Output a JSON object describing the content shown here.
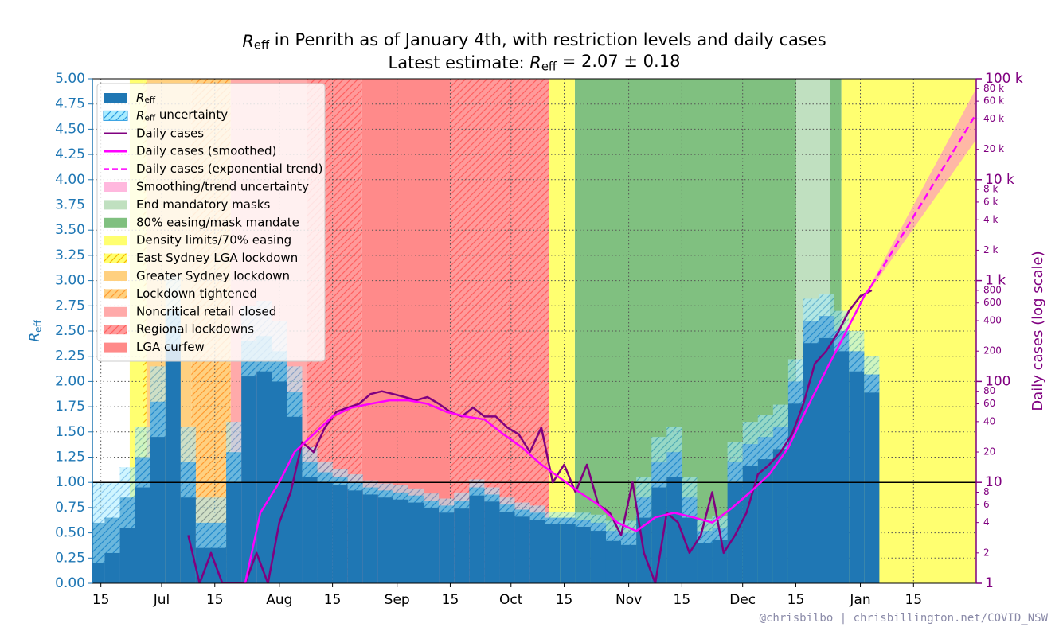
{
  "chart_data": {
    "type": "reff",
    "title": {
      "symbol": "R",
      "subscript": "eff",
      "text": " in Penrith as of January 4th, with restriction levels and daily cases"
    },
    "subtitle": {
      "prefix": "Latest estimate: ",
      "symbol": "R",
      "subscript": "eff",
      "text": " = 2.07 ± 0.18"
    },
    "ylabel": {
      "symbol": "R",
      "subscript": "eff"
    },
    "y2label": "Daily cases (log scale)",
    "credit": "@chrisbilbo | chrisbillington.net/COVID_NSW",
    "grid": true,
    "log_y2": true,
    "hline": 1,
    "xlim": [
      11.76,
      244.5
    ],
    "xticks": [
      {
        "value": 14,
        "label": "15"
      },
      {
        "value": 30,
        "label": "Jul"
      },
      {
        "value": 44,
        "label": "15"
      },
      {
        "value": 61,
        "label": "Aug"
      },
      {
        "value": 75,
        "label": "15"
      },
      {
        "value": 92,
        "label": "Sep"
      },
      {
        "value": 106,
        "label": "15"
      },
      {
        "value": 122,
        "label": "Oct"
      },
      {
        "value": 136,
        "label": "15"
      },
      {
        "value": 153,
        "label": "Nov"
      },
      {
        "value": 167,
        "label": "15"
      },
      {
        "value": 183,
        "label": "Dec"
      },
      {
        "value": 197,
        "label": "15"
      },
      {
        "value": 214,
        "label": "Jan"
      },
      {
        "value": 228,
        "label": "15"
      }
    ],
    "ylim": [
      0,
      5
    ],
    "yticks": [
      {
        "value": 0,
        "label": "0.00"
      },
      {
        "value": 0.25,
        "label": "0.25"
      },
      {
        "value": 0.5,
        "label": "0.50"
      },
      {
        "value": 0.75,
        "label": "0.75"
      },
      {
        "value": 1,
        "label": "1.00"
      },
      {
        "value": 1.25,
        "label": "1.25"
      },
      {
        "value": 1.5,
        "label": "1.50"
      },
      {
        "value": 1.75,
        "label": "1.75"
      },
      {
        "value": 2,
        "label": "2.00"
      },
      {
        "value": 2.25,
        "label": "2.25"
      },
      {
        "value": 2.5,
        "label": "2.50"
      },
      {
        "value": 2.75,
        "label": "2.75"
      },
      {
        "value": 3,
        "label": "3.00"
      },
      {
        "value": 3.25,
        "label": "3.25"
      },
      {
        "value": 3.5,
        "label": "3.50"
      },
      {
        "value": 3.75,
        "label": "3.75"
      },
      {
        "value": 4,
        "label": "4.00"
      },
      {
        "value": 4.25,
        "label": "4.25"
      },
      {
        "value": 4.5,
        "label": "4.50"
      },
      {
        "value": 4.75,
        "label": "4.75"
      },
      {
        "value": 5,
        "label": "5.00"
      }
    ],
    "y2lim": [
      1,
      100000
    ],
    "y2ticks": [
      1,
      10,
      100,
      {
        "value": 1000,
        "label": "1 k"
      },
      {
        "value": 10000,
        "label": "10 k"
      },
      {
        "value": 100000,
        "label": "100 k"
      }
    ],
    "y2minorticks": [
      2,
      4,
      6,
      8,
      20,
      40,
      60,
      80,
      200,
      400,
      600,
      800,
      {
        "value": 2000,
        "label": "2 k"
      },
      {
        "value": 4000,
        "label": "4 k"
      },
      {
        "value": 6000,
        "label": "6 k"
      },
      {
        "value": 8000,
        "label": "8 k"
      },
      {
        "value": 20000,
        "label": "20 k"
      },
      {
        "value": 40000,
        "label": "40 k"
      },
      {
        "value": 60000,
        "label": "60 k"
      },
      {
        "value": 80000,
        "label": "80 k"
      }
    ],
    "reff": {
      "name": {
        "symbol": "R",
        "subscript": "eff"
      },
      "color": "#1f77b4",
      "uncertainty_name": {
        "symbol": "R",
        "subscript": "eff",
        "text": " uncertainty"
      },
      "uncertainty_color": "#a8ecff",
      "uncertainty_hatch": "#2a9be0",
      "x": [
        13,
        17,
        21,
        25,
        29,
        33,
        37,
        41,
        45,
        49,
        53,
        57,
        61,
        65,
        69,
        73,
        77,
        81,
        85,
        89,
        93,
        97,
        101,
        105,
        109,
        113,
        117,
        121,
        125,
        129,
        133,
        137,
        141,
        145,
        149,
        153,
        157,
        161,
        165,
        169,
        173,
        177,
        181,
        185,
        189,
        193,
        197,
        201,
        205,
        209,
        213,
        217
      ],
      "values": [
        0.6,
        0.65,
        0.85,
        1.25,
        1.8,
        2.7,
        1.2,
        0.6,
        0.6,
        1.3,
        2.4,
        2.45,
        2.3,
        1.9,
        1.2,
        1.1,
        1.05,
        1.0,
        0.95,
        0.92,
        0.9,
        0.87,
        0.82,
        0.77,
        0.82,
        0.95,
        0.88,
        0.78,
        0.73,
        0.7,
        0.65,
        0.65,
        0.63,
        0.6,
        0.52,
        0.5,
        0.85,
        1.2,
        1.3,
        0.85,
        0.52,
        0.55,
        1.2,
        1.38,
        1.45,
        1.55,
        2.0,
        2.6,
        2.65,
        2.5,
        2.3,
        2.07
      ],
      "errors": [
        0.4,
        0.35,
        0.3,
        0.3,
        0.35,
        0.35,
        0.35,
        0.25,
        0.25,
        0.3,
        0.35,
        0.35,
        0.3,
        0.25,
        0.15,
        0.1,
        0.08,
        0.08,
        0.07,
        0.07,
        0.07,
        0.07,
        0.07,
        0.07,
        0.08,
        0.08,
        0.07,
        0.07,
        0.07,
        0.07,
        0.06,
        0.06,
        0.07,
        0.08,
        0.1,
        0.12,
        0.2,
        0.25,
        0.25,
        0.2,
        0.12,
        0.12,
        0.2,
        0.22,
        0.22,
        0.22,
        0.22,
        0.22,
        0.22,
        0.2,
        0.2,
        0.18
      ]
    },
    "cases": {
      "name": "Daily cases",
      "color": "#800080",
      "axis": "y2",
      "x": [
        37,
        40,
        43,
        46,
        49,
        52,
        55,
        58,
        61,
        64,
        67,
        70,
        73,
        76,
        79,
        82,
        85,
        88,
        91,
        94,
        97,
        100,
        103,
        106,
        109,
        112,
        115,
        118,
        121,
        124,
        127,
        130,
        133,
        136,
        139,
        142,
        145,
        148,
        151,
        154,
        157,
        160,
        163,
        166,
        169,
        172,
        175,
        178,
        181,
        184,
        187,
        190,
        193,
        196,
        199,
        202,
        205,
        208,
        211,
        214,
        217
      ],
      "values": [
        3,
        1,
        2,
        1,
        1,
        1,
        2,
        1,
        4,
        8,
        25,
        20,
        35,
        50,
        55,
        60,
        75,
        80,
        75,
        70,
        65,
        70,
        60,
        50,
        45,
        55,
        45,
        45,
        35,
        30,
        20,
        35,
        10,
        15,
        8,
        15,
        6,
        5,
        3,
        10,
        2,
        1,
        5,
        4,
        2,
        3,
        8,
        2,
        3,
        5,
        12,
        15,
        20,
        30,
        60,
        150,
        200,
        300,
        500,
        700,
        800
      ]
    },
    "smoothed": {
      "name": "Daily cases (smoothed)",
      "color": "#ff00ff",
      "axis": "y2",
      "x": [
        52,
        56,
        61,
        65,
        70,
        75,
        80,
        85,
        90,
        95,
        100,
        105,
        110,
        115,
        120,
        125,
        130,
        135,
        140,
        145,
        150,
        155,
        160,
        165,
        170,
        175,
        180,
        185,
        190,
        195,
        200,
        205,
        210,
        215,
        217
      ],
      "values": [
        1,
        5,
        10,
        20,
        30,
        45,
        55,
        60,
        65,
        65,
        60,
        50,
        45,
        42,
        30,
        22,
        15,
        11,
        8,
        6,
        4,
        3.3,
        4.5,
        5,
        4.5,
        4,
        5.5,
        8,
        12,
        22,
        55,
        130,
        300,
        700,
        900
      ]
    },
    "trend": {
      "name": "Daily cases (exponential trend)",
      "color": "#ff00ff",
      "axis": "y2",
      "band_name": "Smoothing/trend uncertainty",
      "band_color": "#ff88c8",
      "x": [
        217,
        244.5
      ],
      "values": [
        900,
        45000
      ],
      "lower": [
        850,
        25000
      ],
      "upper": [
        950,
        80000
      ]
    },
    "restrictions": [
      {
        "name": "End mandatory masks",
        "color": "#c0e0c0",
        "spans": [
          [
            197.1,
            206.1
          ]
        ]
      },
      {
        "name": "80% easing/mask mandate",
        "color": "#80c080",
        "spans": [
          [
            138.8,
            197.1
          ],
          [
            206.1,
            209.0
          ]
        ]
      },
      {
        "name": "Density limits/70% easing",
        "color": "#ffff70",
        "spans": [
          [
            21.6,
            25.2
          ],
          [
            132.1,
            138.8
          ],
          [
            209.0,
            244.5
          ]
        ]
      },
      {
        "name": "East Sydney LGA lockdown",
        "color": "#ffff70",
        "hatch": "#f5b800",
        "spans": [
          [
            25.2,
            26.0
          ]
        ]
      },
      {
        "name": "Greater Sydney lockdown",
        "color": "#ffd080",
        "spans": [
          [
            26.0,
            37.8
          ]
        ]
      },
      {
        "name": "Lockdown tightened",
        "color": "#ffd080",
        "hatch": "#ff9a30",
        "spans": [
          [
            37.8,
            48.2
          ]
        ]
      },
      {
        "name": "Noncritical retail closed",
        "color": "#ffaaaa",
        "spans": [
          [
            48.2,
            68.2
          ]
        ]
      },
      {
        "name": "Regional lockdowns",
        "color": "#ff9a9a",
        "hatch": "#ff6060",
        "spans": [
          [
            68.2,
            82.8
          ],
          [
            105.9,
            132.1
          ]
        ]
      },
      {
        "name": "LGA curfew",
        "color": "#ff8a8a",
        "spans": [
          [
            82.8,
            105.9
          ]
        ]
      }
    ]
  }
}
